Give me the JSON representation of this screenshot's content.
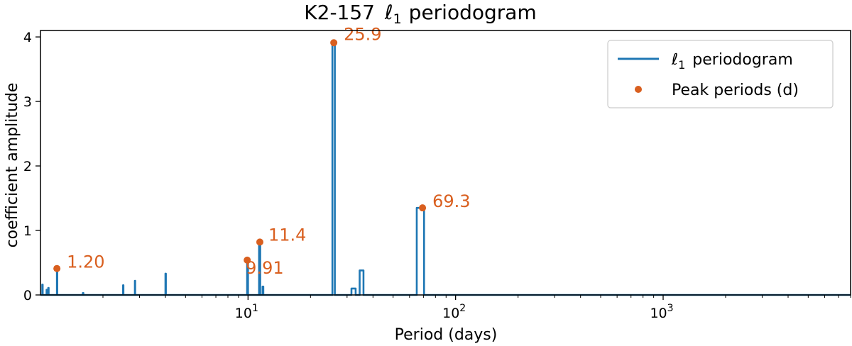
{
  "chart_data": {
    "type": "line",
    "title_main": "K2-157",
    "title_ell": "ℓ",
    "title_sub": "1",
    "title_rest": "periodogram",
    "xlabel": "Period (days)",
    "ylabel": "coefficient amplitude",
    "x_scale": "log",
    "xlim": [
      1.0,
      8000
    ],
    "ylim": [
      0,
      4.1
    ],
    "grid": false,
    "legend_position": "top-right",
    "x_tick_base": "10",
    "x_ticks": [
      {
        "value": 10,
        "exp": "1"
      },
      {
        "value": 100,
        "exp": "2"
      },
      {
        "value": 1000,
        "exp": "3"
      }
    ],
    "y_ticks": [
      0,
      1,
      2,
      3,
      4
    ],
    "colors": {
      "periodogram": "#1f77b4",
      "peaks": "#d95f1f"
    },
    "series": [
      {
        "name_ell": "ℓ",
        "name_sub": "1",
        "name_rest": "periodogram",
        "spikes": [
          {
            "x": [
              1.02,
              1.025
            ],
            "y": 0.16
          },
          {
            "x": [
              1.07,
              1.075
            ],
            "y": 0.08
          },
          {
            "x": [
              1.09,
              1.095
            ],
            "y": 0.11
          },
          {
            "x": [
              1.2,
              1.205
            ],
            "y": 0.4
          },
          {
            "x": [
              1.6,
              1.61
            ],
            "y": 0.03
          },
          {
            "x": [
              2.5,
              2.51
            ],
            "y": 0.15
          },
          {
            "x": [
              2.85,
              2.86
            ],
            "y": 0.22
          },
          {
            "x": [
              4.0,
              4.02
            ],
            "y": 0.33
          },
          {
            "x": [
              9.9,
              10.0
            ],
            "y": 0.55
          },
          {
            "x": [
              11.3,
              11.45
            ],
            "y": 0.8
          },
          {
            "x": [
              11.75,
              11.85
            ],
            "y": 0.13
          },
          {
            "x": [
              25.5,
              26.2
            ],
            "y": 3.9
          },
          {
            "x": [
              31.5,
              33.0
            ],
            "y": 0.1
          },
          {
            "x": [
              34.5,
              36.0
            ],
            "y": 0.38
          },
          {
            "x": [
              65.0,
              70.5
            ],
            "y": 1.35
          }
        ]
      },
      {
        "name": "Peak periods (d)",
        "points": [
          {
            "x": 1.2,
            "y": 0.41,
            "label": "1.20"
          },
          {
            "x": 9.91,
            "y": 0.54,
            "label": "9.91"
          },
          {
            "x": 11.4,
            "y": 0.82,
            "label": "11.4"
          },
          {
            "x": 25.9,
            "y": 3.91,
            "label": "25.9"
          },
          {
            "x": 69.3,
            "y": 1.35,
            "label": "69.3"
          }
        ]
      }
    ]
  }
}
